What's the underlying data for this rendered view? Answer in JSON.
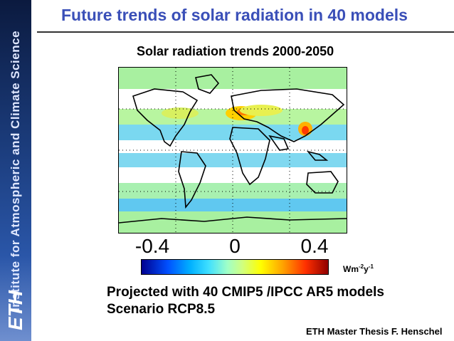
{
  "sidebar": {
    "text": "Institute for Atmospheric and Climate Science",
    "logo": "ETH"
  },
  "slide": {
    "title": "Future trends of solar radiation in 40 models",
    "map_title": "Solar radiation trends 2000-2050",
    "colorbar": {
      "labels": [
        "-0.4",
        "0",
        "0.4"
      ],
      "units_base": "Wm",
      "units_exp1": "-2",
      "units_mid": "y",
      "units_exp2": "-1"
    },
    "subtitle_line1": "Projected with 40 CMIP5 /IPCC AR5 models",
    "subtitle_line2": "Scenario RCP8.5",
    "footer": "ETH Master Thesis F. Henschel"
  },
  "colors": {
    "title": "#3a4fb8",
    "sidebar": "#1a3a78",
    "land_outline": "#000000",
    "ocean_base": "#88d8e8"
  }
}
